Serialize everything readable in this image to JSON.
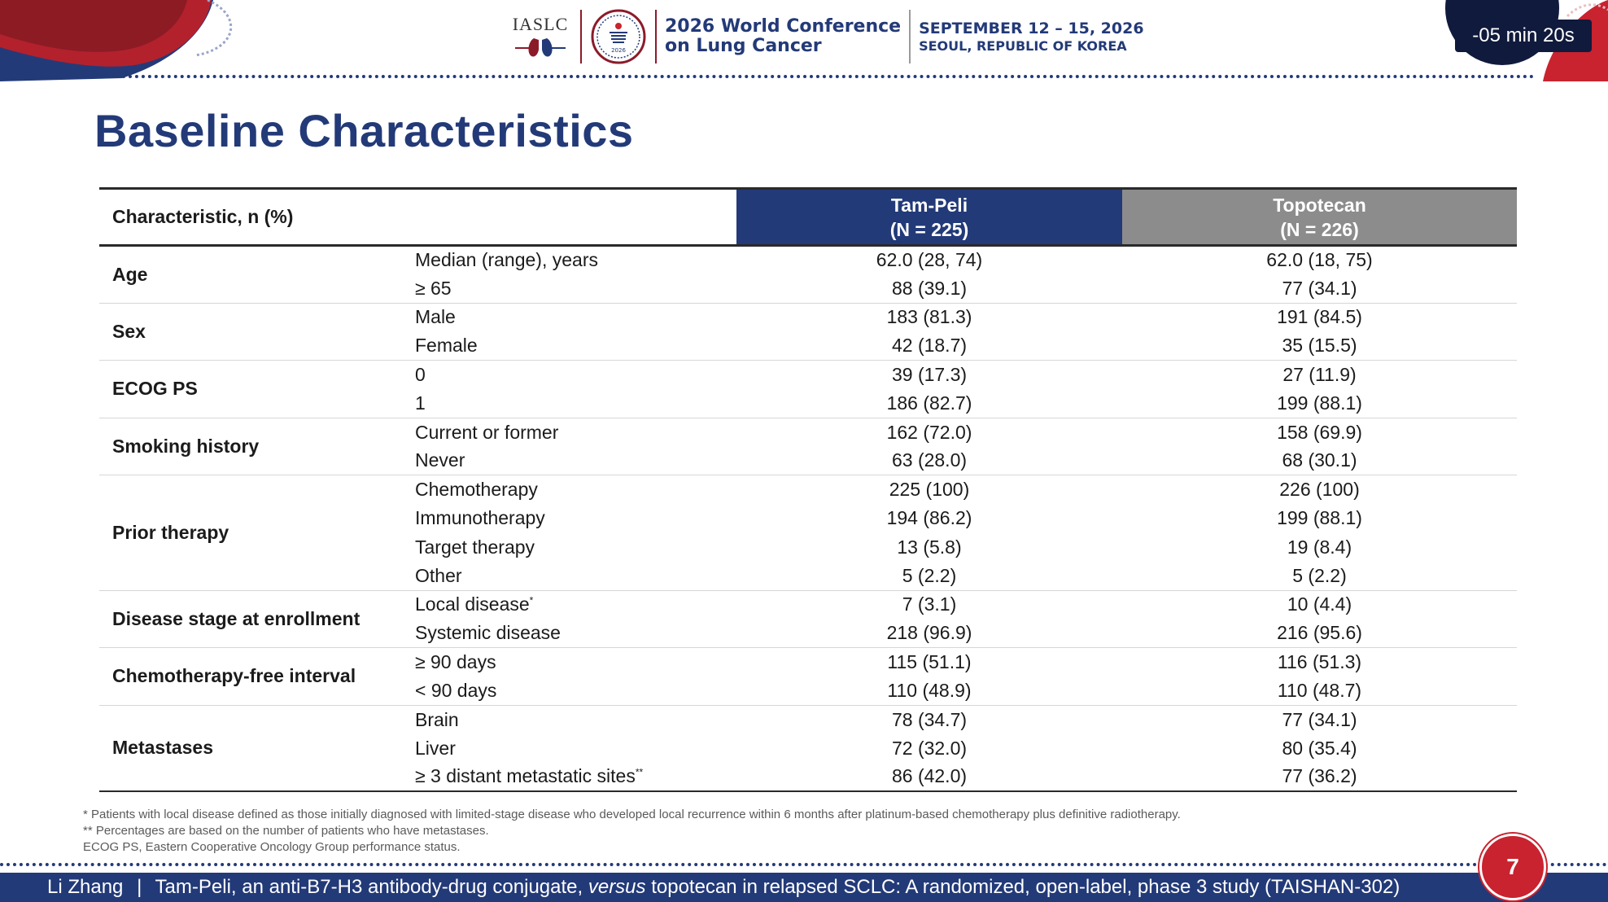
{
  "header": {
    "org_logo_text": "IASLC",
    "badge_year": "2026",
    "conference_line1": "2026 World Conference",
    "conference_line2": "on Lung Cancer",
    "date": "SEPTEMBER 12 – 15, 2026",
    "location": "SEOUL, REPUBLIC OF KOREA",
    "timer": "-05 min 20s"
  },
  "colors": {
    "navy": "#233a78",
    "red": "#c8232f",
    "gray_header": "#8c8c8c"
  },
  "slide": {
    "title": "Baseline Characteristics"
  },
  "table": {
    "header": {
      "characteristic": "Characteristic, n (%)",
      "tam_line1": "Tam-Peli",
      "tam_line2": "(N = 225)",
      "topo_line1": "Topotecan",
      "topo_line2": "(N = 226)"
    },
    "groups": [
      {
        "label": "Age",
        "rows": [
          {
            "sub": "Median (range), years",
            "tam": "62.0 (28, 74)",
            "topo": "62.0 (18, 75)"
          },
          {
            "sub": "≥ 65",
            "tam": "88 (39.1)",
            "topo": "77 (34.1)"
          }
        ]
      },
      {
        "label": "Sex",
        "rows": [
          {
            "sub": "Male",
            "tam": "183 (81.3)",
            "topo": "191 (84.5)"
          },
          {
            "sub": "Female",
            "tam": "42 (18.7)",
            "topo": "35 (15.5)"
          }
        ]
      },
      {
        "label": "ECOG PS",
        "rows": [
          {
            "sub": "0",
            "tam": "39 (17.3)",
            "topo": "27 (11.9)"
          },
          {
            "sub": "1",
            "tam": "186 (82.7)",
            "topo": "199 (88.1)"
          }
        ]
      },
      {
        "label": "Smoking history",
        "rows": [
          {
            "sub": "Current or former",
            "tam": "162 (72.0)",
            "topo": "158 (69.9)"
          },
          {
            "sub": "Never",
            "tam": "63 (28.0)",
            "topo": "68 (30.1)"
          }
        ]
      },
      {
        "label": "Prior therapy",
        "rows": [
          {
            "sub": "Chemotherapy",
            "tam": "225 (100)",
            "topo": "226 (100)"
          },
          {
            "sub": "Immunotherapy",
            "tam": "194 (86.2)",
            "topo": "199 (88.1)"
          },
          {
            "sub": "Target therapy",
            "tam": "13 (5.8)",
            "topo": "19 (8.4)"
          },
          {
            "sub": "Other",
            "tam": "5 (2.2)",
            "topo": "5 (2.2)"
          }
        ]
      },
      {
        "label": "Disease stage at enrollment",
        "rows": [
          {
            "sub": "Local disease",
            "sup": "*",
            "tam": "7 (3.1)",
            "topo": "10 (4.4)"
          },
          {
            "sub": "Systemic disease",
            "tam": "218 (96.9)",
            "topo": "216 (95.6)"
          }
        ]
      },
      {
        "label": "Chemotherapy-free interval",
        "rows": [
          {
            "sub": "≥ 90 days",
            "tam": "115 (51.1)",
            "topo": "116 (51.3)"
          },
          {
            "sub": "< 90 days",
            "tam": "110 (48.9)",
            "topo": "110 (48.7)"
          }
        ]
      },
      {
        "label": "Metastases",
        "rows": [
          {
            "sub": "Brain",
            "tam": "78 (34.7)",
            "topo": "77 (34.1)"
          },
          {
            "sub": "Liver",
            "tam": "72 (32.0)",
            "topo": "80 (35.4)"
          },
          {
            "sub": "≥ 3 distant metastatic sites",
            "sup": "**",
            "tam": "86 (42.0)",
            "topo": "77 (36.2)"
          }
        ]
      }
    ]
  },
  "footnotes": [
    "* Patients with local disease defined as those initially diagnosed with limited-stage disease who developed local recurrence within 6 months after platinum-based chemotherapy plus definitive radiotherapy.",
    "** Percentages are based on the number of patients who have metastases.",
    "ECOG PS, Eastern Cooperative Oncology Group performance status."
  ],
  "footer": {
    "presenter": "Li Zhang",
    "separator": "|",
    "title_part1": "Tam-Peli, an anti-B7-H3 antibody-drug conjugate,",
    "title_italic": "versus",
    "title_part2": "topotecan in relapsed SCLC: A randomized, open-label, phase 3 study (TAISHAN-302)",
    "page_number": "7"
  }
}
